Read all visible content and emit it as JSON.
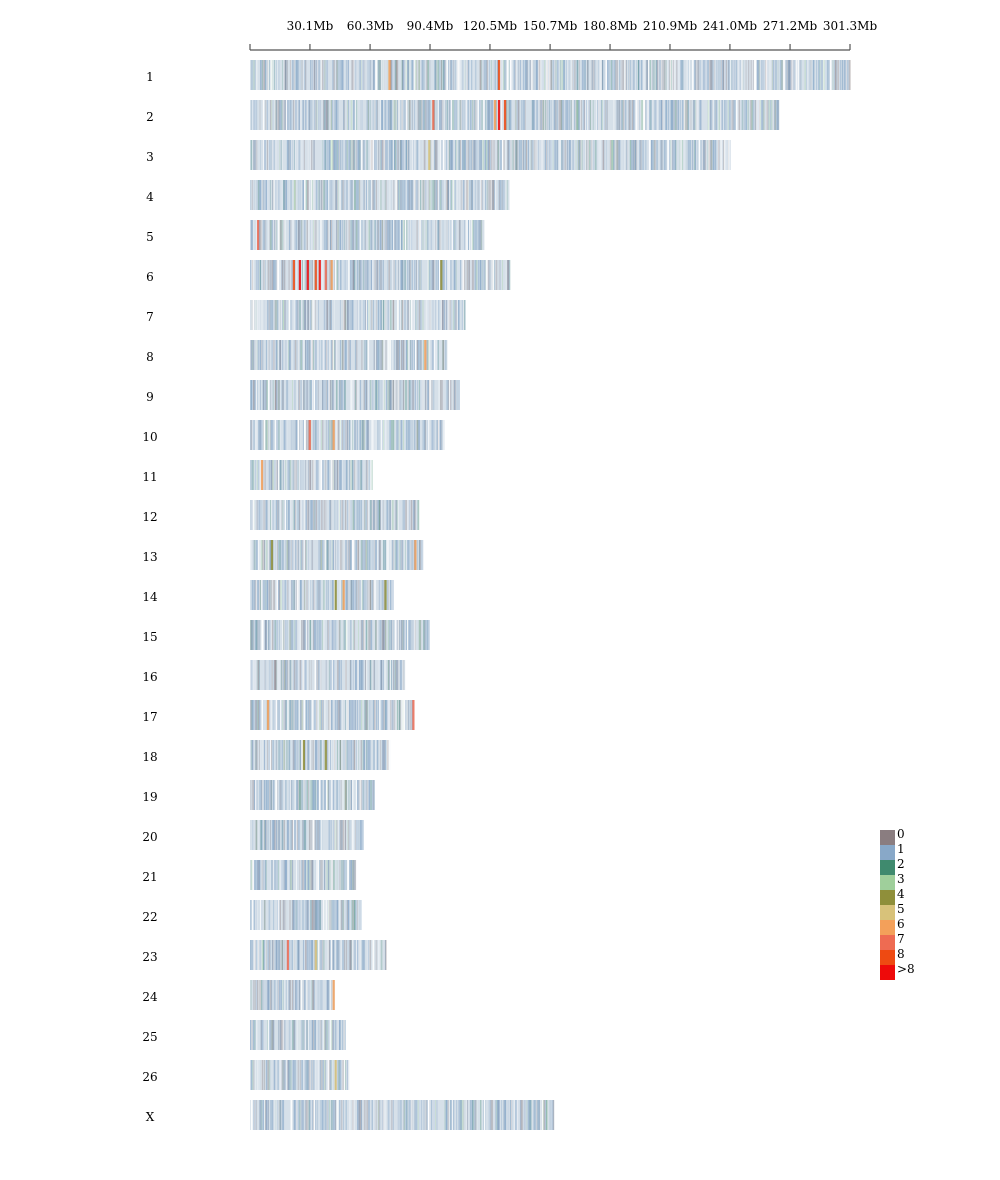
{
  "chart_data": {
    "type": "heatmap",
    "title": "",
    "xlabel": "",
    "ylabel": "",
    "x_unit": "Mb",
    "xlim": [
      0,
      301.3
    ],
    "x_ticks": [
      {
        "value": 0,
        "label": ""
      },
      {
        "value": 30.1,
        "label": "30.1Mb"
      },
      {
        "value": 60.3,
        "label": "60.3Mb"
      },
      {
        "value": 90.4,
        "label": "90.4Mb"
      },
      {
        "value": 120.5,
        "label": "120.5Mb"
      },
      {
        "value": 150.7,
        "label": "150.7Mb"
      },
      {
        "value": 180.8,
        "label": "180.8Mb"
      },
      {
        "value": 210.9,
        "label": "210.9Mb"
      },
      {
        "value": 241.0,
        "label": "241.0Mb"
      },
      {
        "value": 271.2,
        "label": "271.2Mb"
      },
      {
        "value": 301.3,
        "label": "301.3Mb"
      }
    ],
    "chromosomes": [
      {
        "name": "1",
        "length_mb": 301.3,
        "hotspots": [
          {
            "pos_mb": 70,
            "level": 6
          },
          {
            "pos_mb": 125,
            "level": 8
          }
        ]
      },
      {
        "name": "2",
        "length_mb": 265.8,
        "hotspots": [
          {
            "pos_mb": 92,
            "level": 7
          },
          {
            "pos_mb": 125,
            "level": 9
          },
          {
            "pos_mb": 128,
            "level": 8
          },
          {
            "pos_mb": 123,
            "level": 6
          }
        ]
      },
      {
        "name": "3",
        "length_mb": 241.5,
        "hotspots": [
          {
            "pos_mb": 90,
            "level": 5
          }
        ]
      },
      {
        "name": "4",
        "length_mb": 130.3,
        "hotspots": []
      },
      {
        "name": "5",
        "length_mb": 117.7,
        "hotspots": [
          {
            "pos_mb": 4,
            "level": 7
          }
        ]
      },
      {
        "name": "6",
        "length_mb": 130.3,
        "hotspots": [
          {
            "pos_mb": 22,
            "level": 8
          },
          {
            "pos_mb": 25,
            "level": 9
          },
          {
            "pos_mb": 29,
            "level": 9
          },
          {
            "pos_mb": 33,
            "level": 8
          },
          {
            "pos_mb": 35,
            "level": 9
          },
          {
            "pos_mb": 38,
            "level": 7
          },
          {
            "pos_mb": 41,
            "level": 6
          },
          {
            "pos_mb": 96,
            "level": 4
          }
        ]
      },
      {
        "name": "7",
        "length_mb": 108.1,
        "hotspots": []
      },
      {
        "name": "8",
        "length_mb": 99.1,
        "hotspots": [
          {
            "pos_mb": 88,
            "level": 6
          }
        ]
      },
      {
        "name": "9",
        "length_mb": 105.1,
        "hotspots": []
      },
      {
        "name": "10",
        "length_mb": 97.1,
        "hotspots": [
          {
            "pos_mb": 30,
            "level": 7
          },
          {
            "pos_mb": 42,
            "level": 6
          }
        ]
      },
      {
        "name": "11",
        "length_mb": 61.0,
        "hotspots": [
          {
            "pos_mb": 6,
            "level": 6
          }
        ]
      },
      {
        "name": "12",
        "length_mb": 84.7,
        "hotspots": []
      },
      {
        "name": "13",
        "length_mb": 87.3,
        "hotspots": [
          {
            "pos_mb": 11,
            "level": 4
          },
          {
            "pos_mb": 83,
            "level": 6
          }
        ]
      },
      {
        "name": "14",
        "length_mb": 71.4,
        "hotspots": [
          {
            "pos_mb": 43,
            "level": 4
          },
          {
            "pos_mb": 47,
            "level": 6
          },
          {
            "pos_mb": 68,
            "level": 4
          }
        ]
      },
      {
        "name": "15",
        "length_mb": 90.2,
        "hotspots": []
      },
      {
        "name": "16",
        "length_mb": 77.9,
        "hotspots": []
      },
      {
        "name": "17",
        "length_mb": 82.6,
        "hotspots": [
          {
            "pos_mb": 9,
            "level": 6
          },
          {
            "pos_mb": 82,
            "level": 7
          }
        ]
      },
      {
        "name": "18",
        "length_mb": 70.4,
        "hotspots": [
          {
            "pos_mb": 27,
            "level": 4
          },
          {
            "pos_mb": 38,
            "level": 4
          }
        ]
      },
      {
        "name": "19",
        "length_mb": 62.6,
        "hotspots": []
      },
      {
        "name": "20",
        "length_mb": 56.3,
        "hotspots": []
      },
      {
        "name": "21",
        "length_mb": 53.3,
        "hotspots": []
      },
      {
        "name": "22",
        "length_mb": 55.8,
        "hotspots": []
      },
      {
        "name": "23",
        "length_mb": 68.1,
        "hotspots": [
          {
            "pos_mb": 19,
            "level": 7
          },
          {
            "pos_mb": 33,
            "level": 5
          }
        ]
      },
      {
        "name": "24",
        "length_mb": 42.7,
        "hotspots": [
          {
            "pos_mb": 42,
            "level": 6
          }
        ]
      },
      {
        "name": "25",
        "length_mb": 47.9,
        "hotspots": []
      },
      {
        "name": "26",
        "length_mb": 49.4,
        "hotspots": [
          {
            "pos_mb": 43,
            "level": 5
          }
        ]
      },
      {
        "name": "X",
        "length_mb": 152.7,
        "hotspots": []
      }
    ],
    "legend": {
      "placement": "right",
      "items": [
        {
          "label": "0",
          "color": "#8a7d80"
        },
        {
          "label": "1",
          "color": "#88a8c8"
        },
        {
          "label": "2",
          "color": "#3f8a6e"
        },
        {
          "label": "3",
          "color": "#9fcf9b"
        },
        {
          "label": "4",
          "color": "#8f8f3a"
        },
        {
          "label": "5",
          "color": "#d8c27a"
        },
        {
          "label": "6",
          "color": "#f3a05a"
        },
        {
          "label": "7",
          "color": "#ee6b52"
        },
        {
          "label": "8",
          "color": "#ee4a12"
        },
        {
          "label": ">8",
          "color": "#ee0a0a"
        }
      ]
    },
    "colors": {
      "background_stripe": "#d6e0e9",
      "axis": "#555555"
    }
  }
}
